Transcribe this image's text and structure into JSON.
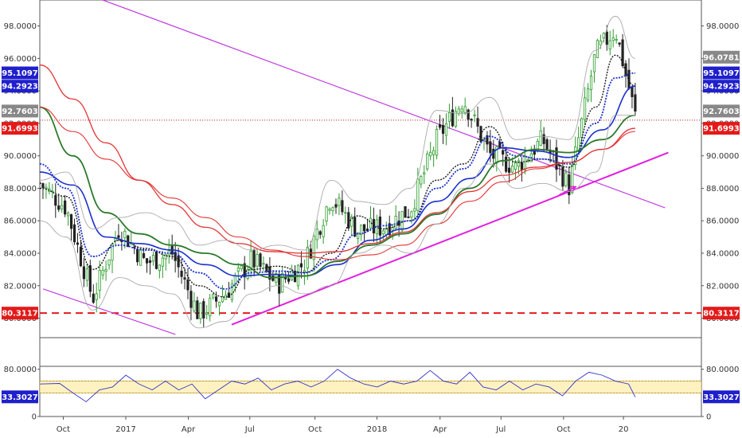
{
  "chart_data": [
    {
      "type": "candlestick",
      "panel": "price",
      "yticks": [
        "98.0000",
        "96.0000",
        "94.0000",
        "92.0000",
        "90.0000",
        "88.0000",
        "86.0000",
        "84.0000",
        "82.0000",
        "80.0000"
      ],
      "yvalues": [
        98,
        96,
        94,
        92,
        90,
        88,
        86,
        84,
        82,
        80
      ],
      "ylim": [
        78.8,
        99.6
      ],
      "grid": false,
      "price_tags": [
        {
          "label": "96.0781",
          "value": 96.0781,
          "color": "#888888",
          "side": "right"
        },
        {
          "label": "95.1097",
          "value": 95.1097,
          "color": "#1f1fcc",
          "side": "both"
        },
        {
          "label": "94.2923",
          "value": 94.2923,
          "color": "#1f1fcc",
          "side": "both"
        },
        {
          "label": "92.7603",
          "value": 92.7603,
          "color": "#888888",
          "side": "both"
        },
        {
          "label": "91.6993",
          "value": 91.6993,
          "color": "#e31a1a",
          "side": "both"
        },
        {
          "label": "80.3117",
          "value": 80.3117,
          "color": "#e31a1a",
          "side": "both"
        }
      ],
      "horizontal_lines": [
        {
          "value": 80.3117,
          "color": "#e31a1a",
          "style": "dashed"
        },
        {
          "value": 92.2,
          "color": "#b22222",
          "style": "dotted"
        }
      ],
      "trendlines": [
        {
          "from": [
            0.095,
            99.6
          ],
          "to": [
            0.945,
            86.8
          ],
          "color": "#c040e0"
        },
        {
          "from": [
            0.005,
            81.8
          ],
          "to": [
            0.205,
            79.0
          ],
          "color": "#c040e0"
        },
        {
          "from": [
            0.29,
            79.6
          ],
          "to": [
            0.95,
            90.2
          ],
          "color": "#e020e0",
          "width": 2
        }
      ],
      "arrows": [
        {
          "from": [
            0.785,
            87.6
          ],
          "to": [
            0.81,
            88.1
          ],
          "color": "#e020e0"
        }
      ],
      "series": [
        {
          "kind": "sma",
          "color": "#1a1a1a",
          "x": [
            0.0,
            0.04,
            0.08,
            0.12,
            0.16,
            0.2,
            0.24,
            0.28,
            0.32,
            0.36,
            0.4,
            0.44,
            0.48,
            0.52,
            0.56,
            0.6,
            0.64,
            0.68,
            0.72,
            0.76,
            0.8,
            0.84,
            0.87,
            0.9
          ],
          "values": [
            88.0,
            87.5,
            83.0,
            84.8,
            84.3,
            83.8,
            82.0,
            81.3,
            83.0,
            83.2,
            82.8,
            84.0,
            86.3,
            85.5,
            86.0,
            88.5,
            89.5,
            91.8,
            89.6,
            89.8,
            89.3,
            93.0,
            96.2,
            94.3
          ]
        },
        {
          "kind": "ema-fast",
          "color": "#1a30cc",
          "x": [
            0.0,
            0.04,
            0.08,
            0.12,
            0.16,
            0.2,
            0.24,
            0.28,
            0.32,
            0.36,
            0.4,
            0.44,
            0.48,
            0.52,
            0.56,
            0.6,
            0.64,
            0.68,
            0.72,
            0.76,
            0.8,
            0.84,
            0.87,
            0.9
          ],
          "values": [
            89.5,
            88.0,
            83.8,
            84.5,
            84.2,
            84.0,
            82.8,
            81.8,
            82.8,
            82.9,
            82.8,
            83.6,
            85.2,
            85.7,
            86.0,
            88.0,
            89.2,
            91.2,
            90.0,
            89.8,
            89.5,
            92.0,
            94.8,
            95.1
          ]
        },
        {
          "kind": "ema-mid",
          "color": "#1a30cc",
          "x": [
            0.0,
            0.05,
            0.1,
            0.15,
            0.2,
            0.25,
            0.3,
            0.35,
            0.4,
            0.45,
            0.5,
            0.55,
            0.6,
            0.65,
            0.7,
            0.75,
            0.8,
            0.85,
            0.9
          ],
          "values": [
            89.0,
            88.2,
            85.0,
            84.6,
            84.2,
            83.3,
            82.6,
            82.7,
            82.6,
            83.3,
            84.8,
            85.5,
            87.2,
            88.6,
            90.5,
            90.3,
            89.9,
            91.6,
            94.3
          ]
        },
        {
          "kind": "ema-slow",
          "color": "#2a7a2a",
          "x": [
            0.0,
            0.05,
            0.1,
            0.15,
            0.2,
            0.25,
            0.3,
            0.35,
            0.4,
            0.45,
            0.5,
            0.55,
            0.6,
            0.65,
            0.7,
            0.75,
            0.8,
            0.85,
            0.9
          ],
          "values": [
            93.0,
            90.0,
            86.5,
            85.2,
            84.5,
            84.0,
            83.3,
            82.5,
            82.6,
            83.5,
            84.5,
            85.2,
            86.4,
            88.0,
            89.7,
            90.4,
            90.2,
            91.0,
            92.5
          ]
        },
        {
          "kind": "sma-200",
          "color": "#e33333",
          "x": [
            0.0,
            0.05,
            0.1,
            0.15,
            0.2,
            0.25,
            0.3,
            0.35,
            0.4,
            0.45,
            0.5,
            0.55,
            0.6,
            0.65,
            0.7,
            0.75,
            0.8,
            0.85,
            0.9
          ],
          "values": [
            95.6,
            93.5,
            90.8,
            88.5,
            87.0,
            85.6,
            84.6,
            84.1,
            84.0,
            84.1,
            84.6,
            85.3,
            86.5,
            87.8,
            88.8,
            89.3,
            89.6,
            90.4,
            91.7
          ]
        },
        {
          "kind": "ema-200",
          "color": "#e33333",
          "x": [
            0.0,
            0.05,
            0.1,
            0.15,
            0.2,
            0.25,
            0.3,
            0.35,
            0.4,
            0.45,
            0.5,
            0.55,
            0.6,
            0.65,
            0.7,
            0.75,
            0.8,
            0.85,
            0.9
          ],
          "values": [
            93.0,
            91.5,
            89.8,
            88.5,
            87.4,
            86.2,
            85.0,
            84.2,
            83.8,
            83.6,
            83.9,
            84.5,
            85.8,
            87.2,
            88.4,
            89.2,
            89.6,
            90.4,
            91.5
          ]
        },
        {
          "kind": "bollinger-upper",
          "color": "#aaaaaa",
          "x": [
            0.0,
            0.04,
            0.08,
            0.12,
            0.16,
            0.2,
            0.24,
            0.28,
            0.32,
            0.36,
            0.4,
            0.44,
            0.48,
            0.52,
            0.56,
            0.6,
            0.64,
            0.68,
            0.72,
            0.76,
            0.8,
            0.84,
            0.87,
            0.9
          ],
          "values": [
            88.5,
            89.0,
            85.5,
            86.2,
            86.5,
            86.0,
            84.5,
            84.8,
            84.2,
            84.5,
            84.2,
            88.5,
            87.2,
            87.0,
            88.0,
            92.8,
            92.6,
            93.6,
            91.0,
            91.2,
            91.0,
            96.5,
            98.6,
            96.0
          ]
        },
        {
          "kind": "bollinger-lower",
          "color": "#aaaaaa",
          "x": [
            0.0,
            0.04,
            0.08,
            0.12,
            0.16,
            0.2,
            0.24,
            0.28,
            0.32,
            0.36,
            0.4,
            0.44,
            0.48,
            0.52,
            0.56,
            0.6,
            0.64,
            0.68,
            0.72,
            0.76,
            0.8,
            0.84,
            0.87,
            0.9
          ],
          "values": [
            86.0,
            85.0,
            80.5,
            82.5,
            82.0,
            81.5,
            79.4,
            79.8,
            81.5,
            82.0,
            81.5,
            82.0,
            84.0,
            84.5,
            84.0,
            85.8,
            88.0,
            89.5,
            88.0,
            88.3,
            87.8,
            89.0,
            92.5,
            92.5
          ]
        }
      ],
      "close": {
        "x": [
          0.0,
          0.04,
          0.08,
          0.12,
          0.16,
          0.2,
          0.24,
          0.28,
          0.32,
          0.36,
          0.4,
          0.44,
          0.48,
          0.52,
          0.56,
          0.6,
          0.64,
          0.68,
          0.72,
          0.76,
          0.8,
          0.84,
          0.87,
          0.9
        ],
        "values": [
          88.3,
          86.8,
          81.2,
          85.6,
          83.4,
          84.0,
          80.2,
          81.5,
          83.6,
          82.1,
          83.4,
          87.5,
          85.4,
          85.6,
          86.7,
          91.0,
          93.5,
          90.1,
          89.3,
          91.0,
          88.1,
          96.3,
          97.8,
          92.5
        ]
      }
    },
    {
      "type": "line",
      "panel": "rsi",
      "yticks": [
        "80.0000",
        "0"
      ],
      "yvalues": [
        80,
        0
      ],
      "ylim": [
        0,
        85
      ],
      "band": [
        40,
        60
      ],
      "price_tags": [
        {
          "label": "33.3027",
          "value": 33.3027,
          "color": "#1f1fcc",
          "side": "both"
        }
      ],
      "series": [
        {
          "kind": "rsi",
          "color": "#3333cc",
          "x": [
            0.0,
            0.03,
            0.05,
            0.07,
            0.09,
            0.11,
            0.13,
            0.15,
            0.17,
            0.19,
            0.21,
            0.23,
            0.25,
            0.27,
            0.29,
            0.31,
            0.33,
            0.35,
            0.37,
            0.39,
            0.41,
            0.43,
            0.45,
            0.47,
            0.49,
            0.51,
            0.53,
            0.55,
            0.57,
            0.59,
            0.61,
            0.63,
            0.65,
            0.67,
            0.69,
            0.71,
            0.73,
            0.75,
            0.77,
            0.79,
            0.81,
            0.83,
            0.85,
            0.87,
            0.89,
            0.9
          ],
          "values": [
            55,
            56,
            40,
            25,
            45,
            50,
            70,
            55,
            45,
            60,
            45,
            55,
            30,
            45,
            60,
            55,
            65,
            45,
            55,
            60,
            50,
            60,
            80,
            65,
            55,
            50,
            60,
            55,
            60,
            78,
            60,
            55,
            75,
            50,
            45,
            60,
            45,
            55,
            50,
            35,
            60,
            75,
            70,
            60,
            55,
            33
          ]
        }
      ]
    }
  ],
  "xaxis": {
    "labels": [
      "Oct",
      "2017",
      "Apr",
      "Jul",
      "Oct",
      "2018",
      "Apr",
      "Jul",
      "Oct",
      "20"
    ],
    "positions": [
      0.045,
      0.165,
      0.285,
      0.403,
      0.528,
      0.647,
      0.768,
      0.885,
      1.005,
      1.12
    ]
  }
}
